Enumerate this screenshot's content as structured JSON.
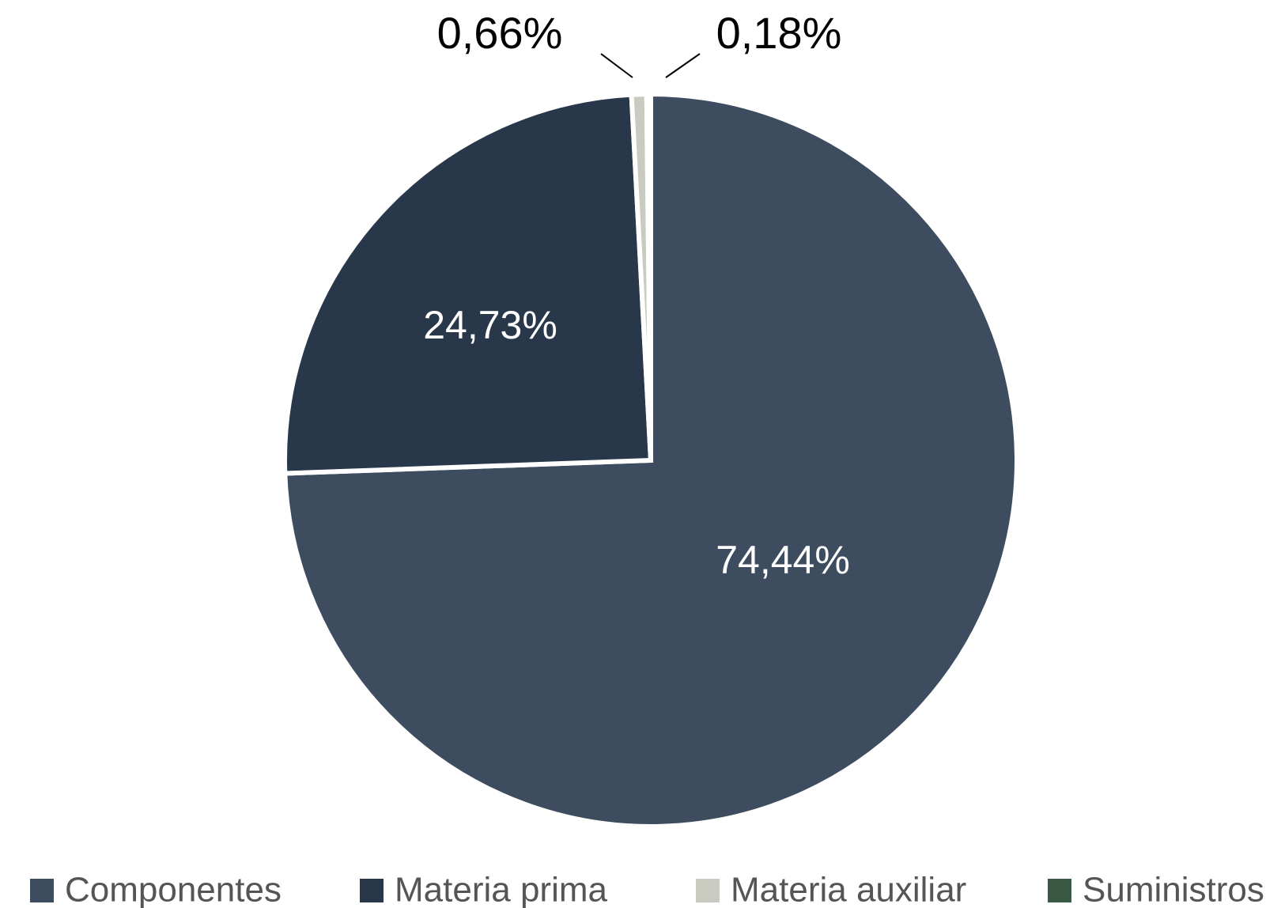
{
  "chart_data": {
    "type": "pie",
    "categories": [
      "Componentes",
      "Materia prima",
      "Materia auxiliar",
      "Suministros"
    ],
    "values": [
      74.44,
      24.73,
      0.66,
      0.18
    ],
    "value_labels": [
      "74,44%",
      "24,73%",
      "0,66%",
      "0,18%"
    ],
    "colors": [
      "#3d4d5f",
      "#28374a",
      "#c9cbc1",
      "#3a5944"
    ],
    "legend": "bottom"
  }
}
